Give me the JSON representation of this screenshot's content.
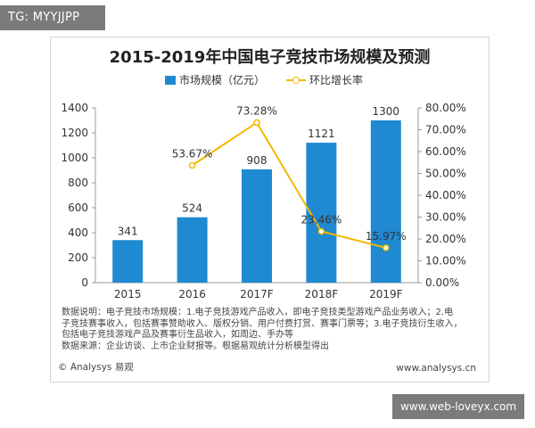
{
  "top_tag": "TG: MYYJJPP",
  "bottom_tag": "www.web-loveyx.com",
  "footer": {
    "left": "© Analysys 易观",
    "right": "www.analysys.cn"
  },
  "note": {
    "line1": "数据说明：电子竞技市场规模：1.电子竞技游戏产品收入，即电子竞技类型游戏产品业务收入；2.电",
    "line2": "子竞技赛事收入，包括赛事赞助收入、版权分销、用户付费打赏、赛事门票等；3.电子竞技衍生收入，",
    "line3": "包括电子竞技游戏产品及赛事衍生品收入，如周边、手办等",
    "line4": "数据来源：企业访谈、上市企业财报等。根据易观统计分析模型得出"
  },
  "chart_data": {
    "type": "bar",
    "title": "2015-2019年中国电子竞技市场规模及预测",
    "categories": [
      "2015",
      "2016",
      "2017F",
      "2018F",
      "2019F"
    ],
    "series": [
      {
        "name": "市场规模（亿元）",
        "type": "bar",
        "axis": "left",
        "values": [
          341,
          524,
          908,
          1121,
          1300
        ],
        "labels": [
          "341",
          "524",
          "908",
          "1121",
          "1300"
        ]
      },
      {
        "name": "环比增长率",
        "type": "line",
        "axis": "right",
        "values": [
          null,
          53.67,
          73.28,
          23.46,
          15.97
        ],
        "labels": [
          "",
          "53.67%",
          "73.28%",
          "23.46%",
          "15.97%"
        ]
      }
    ],
    "y_left": {
      "range": [
        0,
        1400
      ],
      "ticks": [
        "0",
        "200",
        "400",
        "600",
        "800",
        "1000",
        "1200",
        "1400"
      ]
    },
    "y_right": {
      "range": [
        0,
        80
      ],
      "ticks": [
        "0.00%",
        "10.00%",
        "20.00%",
        "30.00%",
        "40.00%",
        "50.00%",
        "60.00%",
        "70.00%",
        "80.00%"
      ]
    },
    "grid": false,
    "legend_position": "top",
    "colors": {
      "bar": "#1f8ad1",
      "line": "#f5b700",
      "axis": "#999999"
    }
  }
}
